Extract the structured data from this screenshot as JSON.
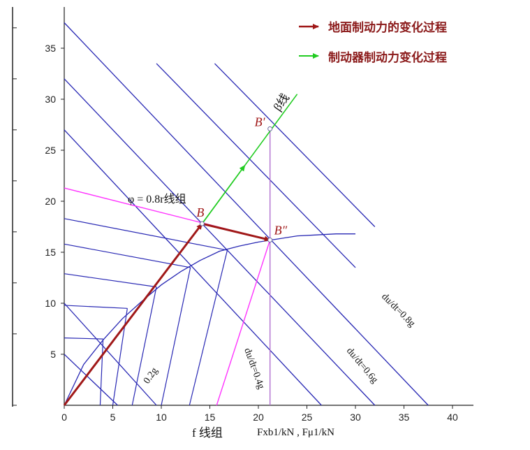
{
  "chart_data": {
    "type": "line",
    "title": "",
    "xlabel_f": "f 线组",
    "xlabel": "Fxb1/kN , Fμ1/kN",
    "ylabel": "",
    "xlim": [
      0,
      42
    ],
    "ylim": [
      0,
      39
    ],
    "x_ticks": [
      0,
      5,
      10,
      15,
      20,
      25,
      30,
      35,
      40
    ],
    "y_ticks": [
      5,
      10,
      15,
      20,
      25,
      30,
      35
    ],
    "legend": [
      {
        "label": "地面制动力的变化过程",
        "color": "#a01818"
      },
      {
        "label": "制动器制动力变化过程",
        "color": "#22cc22"
      }
    ],
    "colors": {
      "lines": "#2828b4",
      "phi": "#ff33ff",
      "vertical": "#b070d0",
      "red": "#a01818",
      "green": "#22cc22"
    },
    "i_curve": {
      "x": [
        0,
        2,
        4,
        6,
        8,
        10,
        12,
        14,
        16,
        18,
        20,
        22,
        24,
        26,
        28,
        30
      ],
      "y": [
        0,
        4.0,
        6.4,
        8.5,
        10.2,
        11.8,
        13.1,
        14.2,
        15.1,
        15.6,
        16.0,
        16.3,
        16.6,
        16.7,
        16.8,
        16.8
      ]
    },
    "r_lines": [
      {
        "x": [
          0,
          5.5
        ],
        "y": [
          5,
          0
        ],
        "label": ""
      },
      {
        "x": [
          0,
          9.5
        ],
        "y": [
          10,
          0
        ],
        "label": "0.2g"
      },
      {
        "x": [
          0,
          26.5
        ],
        "y": [
          27,
          0
        ],
        "label": ""
      },
      {
        "x": [
          0,
          32
        ],
        "y": [
          32,
          0
        ],
        "label": "du/dt=0.4g"
      },
      {
        "x": [
          0,
          37.5
        ],
        "y": [
          37.5,
          0
        ],
        "label": "du/dt=0.6g"
      },
      {
        "x": [
          9.5,
          30
        ],
        "y": [
          33.5,
          13.5
        ],
        "label": ""
      },
      {
        "x": [
          15.5,
          32
        ],
        "y": [
          33.5,
          17.5
        ],
        "label": "du/dt=0.8g"
      }
    ],
    "f_lines": [
      {
        "x": [
          0,
          4.0
        ],
        "y": [
          6.6,
          6.5
        ]
      },
      {
        "x": [
          0,
          6.5
        ],
        "y": [
          9.8,
          9.5
        ]
      },
      {
        "x": [
          0,
          9.5
        ],
        "y": [
          12.9,
          11.6
        ]
      },
      {
        "x": [
          0,
          13.0
        ],
        "y": [
          15.8,
          13.5
        ]
      },
      {
        "x": [
          0,
          16.8
        ],
        "y": [
          18.3,
          15.2
        ]
      }
    ],
    "f_drops": [
      {
        "x": [
          4.0,
          3.7
        ],
        "y": [
          6.5,
          0
        ]
      },
      {
        "x": [
          6.5,
          5.0
        ],
        "y": [
          9.5,
          0
        ]
      },
      {
        "x": [
          9.5,
          7.0
        ],
        "y": [
          11.6,
          0
        ]
      },
      {
        "x": [
          13.0,
          10.0
        ],
        "y": [
          13.5,
          0
        ]
      },
      {
        "x": [
          16.8,
          12.9
        ],
        "y": [
          15.2,
          0
        ]
      }
    ],
    "phi_line": {
      "x": [
        0,
        21.2
      ],
      "y": [
        21.3,
        16.2
      ],
      "label": "φ = 0.8r线组"
    },
    "phi_up": {
      "x": [
        15.7,
        21.2
      ],
      "y": [
        0,
        16.2
      ]
    },
    "beta_line": {
      "x": [
        14.2,
        24
      ],
      "y": [
        17.8,
        30.5
      ],
      "label": "β线"
    },
    "vertical": {
      "x": [
        21.2,
        21.2
      ],
      "y": [
        0,
        27.1
      ]
    },
    "red_path": {
      "x": [
        0,
        14.2,
        21.2
      ],
      "y": [
        0,
        17.8,
        16.2
      ]
    },
    "points": [
      {
        "name": "B",
        "x": 14.2,
        "y": 17.8
      },
      {
        "name": "B′",
        "x": 21.2,
        "y": 27.1
      },
      {
        "name": "B″",
        "x": 21.2,
        "y": 16.2
      }
    ]
  }
}
